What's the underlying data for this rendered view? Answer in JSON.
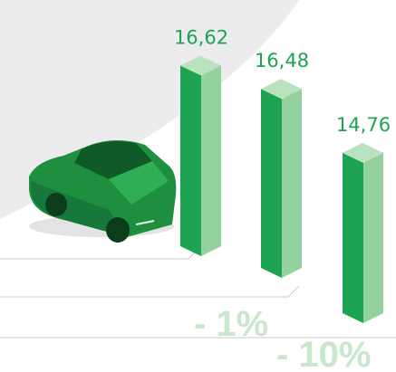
{
  "chart_data": {
    "type": "bar",
    "categories": [
      null,
      null,
      null
    ],
    "values": [
      16.62,
      16.48,
      14.76
    ],
    "value_labels": [
      "16,62",
      "16,48",
      "14,76"
    ],
    "color": "#1ea352",
    "annotations": [
      "- 1%",
      "- 10%"
    ]
  }
}
